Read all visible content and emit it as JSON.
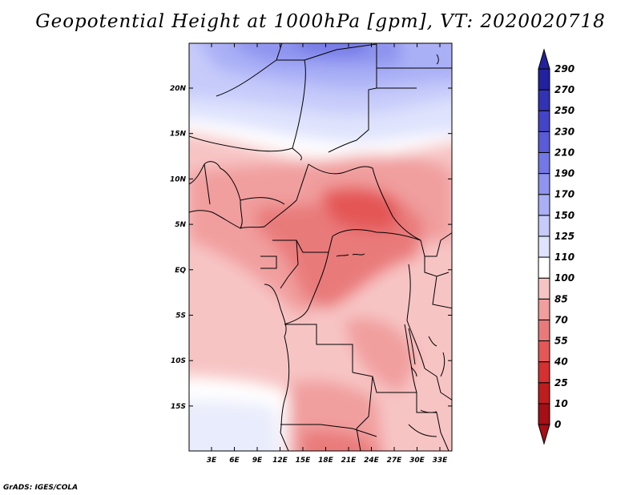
{
  "title": "Geopotential Height at 1000hPa [gpm], VT: 2020020718",
  "credit": "GrADS: IGES/COLA",
  "map": {
    "lat_ticks": [
      "20N",
      "15N",
      "10N",
      "5N",
      "EQ",
      "5S",
      "10S",
      "15S"
    ],
    "lon_ticks": [
      "3E",
      "6E",
      "9E",
      "12E",
      "15E",
      "18E",
      "21E",
      "24E",
      "27E",
      "30E",
      "33E"
    ]
  },
  "colorbar": {
    "levels": [
      "0",
      "10",
      "25",
      "40",
      "55",
      "70",
      "85",
      "100",
      "110",
      "125",
      "150",
      "170",
      "190",
      "210",
      "230",
      "250",
      "270",
      "290"
    ],
    "colors": [
      "#a50f15",
      "#bf1d1d",
      "#d63030",
      "#e45757",
      "#e97a7a",
      "#f19e9e",
      "#f7c4c4",
      "#ffffff",
      "#dfe3fd",
      "#c6cbfa",
      "#aab0f6",
      "#8e94ef",
      "#7378e6",
      "#5a5bd8",
      "#4444c8",
      "#3232b4",
      "#22229e"
    ]
  }
}
